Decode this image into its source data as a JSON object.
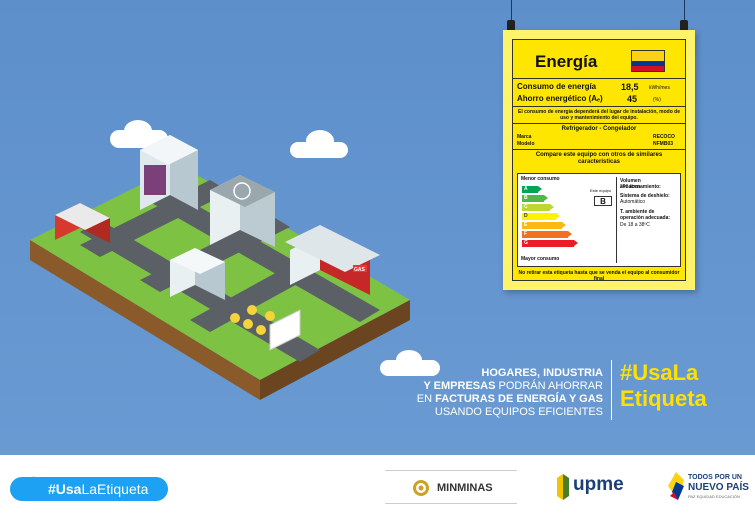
{
  "energy_label": {
    "title": "Energía",
    "consumption_label": "Consumo de energía",
    "consumption_value": "18,5",
    "consumption_unit": "kWh/mes",
    "savings_label": "Ahorro energético (Aₑ)",
    "savings_value": "45",
    "savings_unit": "(%)",
    "note": "El consumo de energía dependerá del lugar de instalación, modo de uso y mantenimiento del equipo.",
    "product_type": "Refrigerador - Congelador",
    "brand_label": "Marca",
    "brand_value": "RECOCO",
    "model_label": "Modelo",
    "model_value": "NFMB03",
    "compare_text": "Compare este equipo con otros de similares características",
    "min_consumption": "Menor consumo",
    "max_consumption": "Mayor consumo",
    "classes": [
      "A",
      "B",
      "C",
      "D",
      "E",
      "F",
      "G"
    ],
    "class_colors": [
      "#00a651",
      "#50b848",
      "#bed630",
      "#fff200",
      "#fdb913",
      "#f37021",
      "#ed1c24"
    ],
    "this_equipment_label": "Este equipo",
    "this_equipment_class": "B",
    "storage_volume_label": "Volumen almacenamiento:",
    "storage_volume_value": "240 litros",
    "defrost_label": "Sistema de deshielo:",
    "defrost_value": "Automático",
    "ambient_temp_label": "T. ambiente de operación adecuada:",
    "ambient_temp_value": "De 18 a 38ºC",
    "footer_note": "No retirar esta etiqueta hasta que se venda el equipo al consumidor final"
  },
  "building_sign": "GAS",
  "headline": {
    "line1": "HOGARES, INDUSTRIA",
    "line2_bold": "Y EMPRESAS",
    "line2_rest": " PODRÁN AHORRAR",
    "line3_pre": "EN ",
    "line3_bold": "FACTURAS DE ENERGÍA Y GAS",
    "line4": "USANDO EQUIPOS EFICIENTES"
  },
  "hashtag": {
    "line1": "#UsaLa",
    "line2": "Etiqueta"
  },
  "footer": {
    "twitter_hashtag_bold": "#Usa",
    "twitter_hashtag_rest": "LaEtiqueta",
    "minminas": "MINMINAS",
    "upme": "upme",
    "todos_line1": "TODOS POR UN",
    "todos_line2": "NUEVO PAÍS",
    "todos_line3": "PAZ  EQUIDAD  EDUCACIÓN"
  },
  "colors": {
    "sky": "#5d8fcb",
    "label_yellow": "#ffe600",
    "hashtag_yellow": "#ffe100",
    "twitter_blue": "#1da1f2",
    "grass": "#7dc242"
  }
}
